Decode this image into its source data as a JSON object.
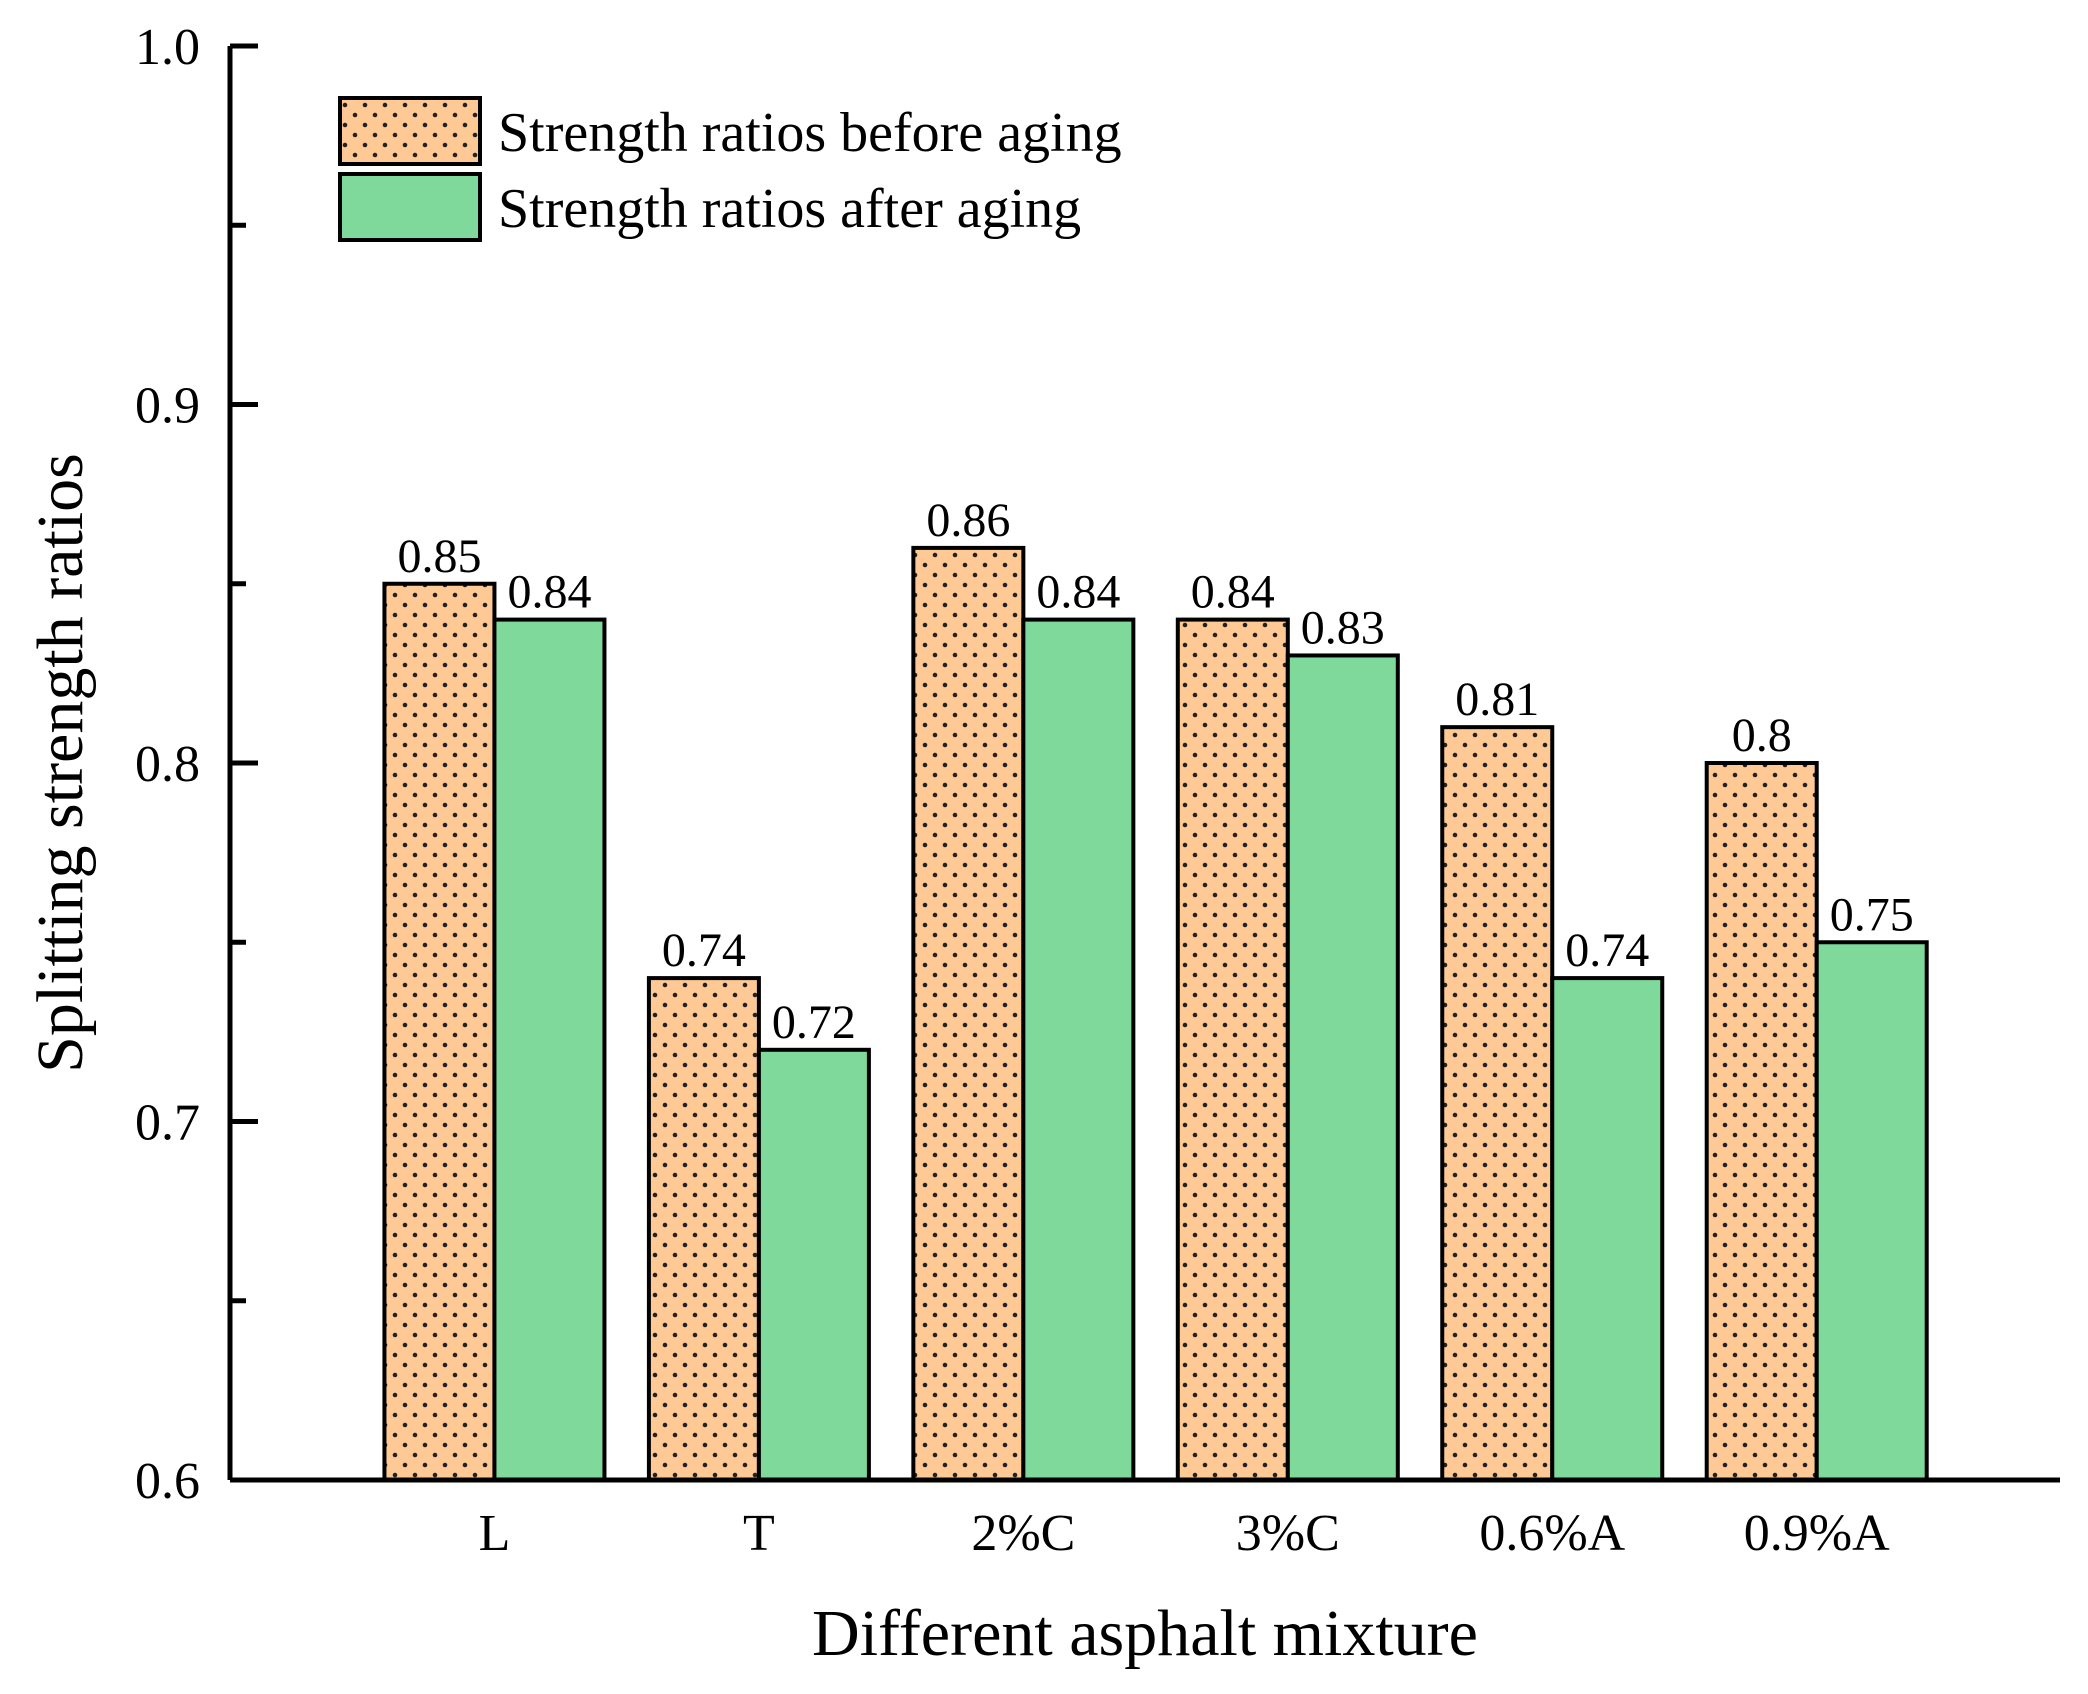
{
  "chart_data": {
    "type": "bar",
    "title": "",
    "xlabel": "Different asphalt mixture",
    "ylabel": "Splitting strength ratios",
    "ylim": [
      0.6,
      1.0
    ],
    "y_ticks": [
      0.6,
      0.7,
      0.8,
      0.9,
      1.0
    ],
    "y_tick_labels": [
      "0.6",
      "0.7",
      "0.8",
      "0.9",
      "1.0"
    ],
    "categories": [
      "L",
      "T",
      "2%C",
      "3%C",
      "0.6%A",
      "0.9%A"
    ],
    "series": [
      {
        "name": "Strength ratios before aging",
        "values": [
          0.85,
          0.74,
          0.86,
          0.84,
          0.81,
          0.8
        ],
        "labels": [
          "0.85",
          "0.74",
          "0.86",
          "0.84",
          "0.81",
          "0.8"
        ],
        "color": "#FEC995",
        "pattern": "dots"
      },
      {
        "name": "Strength ratios after aging",
        "values": [
          0.84,
          0.72,
          0.84,
          0.83,
          0.74,
          0.75
        ],
        "labels": [
          "0.84",
          "0.72",
          "0.84",
          "0.83",
          "0.74",
          "0.75"
        ],
        "color": "#7FD99A",
        "pattern": "solid"
      }
    ],
    "legend_position": "top-left",
    "grid": false
  }
}
